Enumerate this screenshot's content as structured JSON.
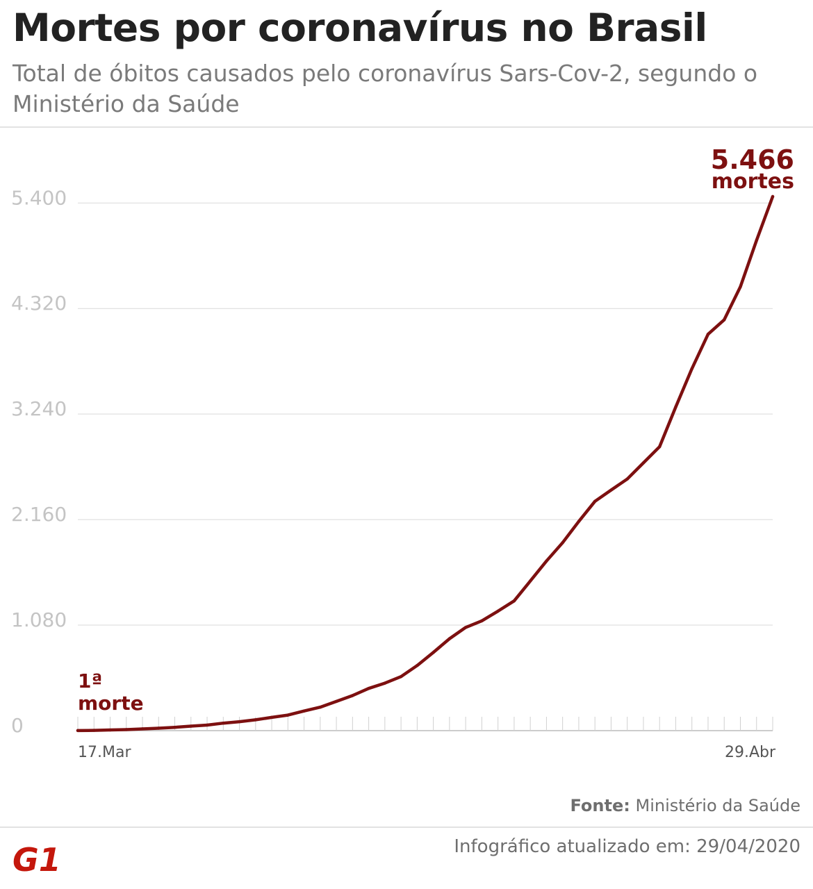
{
  "header": {
    "title": "Mortes por coronavírus no Brasil",
    "subtitle": "Total de óbitos causados pelo coronavírus Sars-Cov-2, segundo o Ministério da Saúde"
  },
  "footer": {
    "source_label": "Fonte:",
    "source_value": "Ministério da Saúde",
    "updated": "Infográfico atualizado em: 29/04/2020",
    "logo_text": "G1",
    "logo_color": "#c4170c"
  },
  "chart_data": {
    "type": "line",
    "x": [
      "2020-03-17",
      "2020-03-18",
      "2020-03-19",
      "2020-03-20",
      "2020-03-21",
      "2020-03-22",
      "2020-03-23",
      "2020-03-24",
      "2020-03-25",
      "2020-03-26",
      "2020-03-27",
      "2020-03-28",
      "2020-03-29",
      "2020-03-30",
      "2020-03-31",
      "2020-04-01",
      "2020-04-02",
      "2020-04-03",
      "2020-04-04",
      "2020-04-05",
      "2020-04-06",
      "2020-04-07",
      "2020-04-08",
      "2020-04-09",
      "2020-04-10",
      "2020-04-11",
      "2020-04-12",
      "2020-04-13",
      "2020-04-14",
      "2020-04-15",
      "2020-04-16",
      "2020-04-17",
      "2020-04-18",
      "2020-04-19",
      "2020-04-20",
      "2020-04-21",
      "2020-04-22",
      "2020-04-23",
      "2020-04-24",
      "2020-04-25",
      "2020-04-26",
      "2020-04-27",
      "2020-04-28",
      "2020-04-29"
    ],
    "values": [
      1,
      3,
      7,
      11,
      18,
      25,
      34,
      46,
      57,
      77,
      92,
      111,
      136,
      159,
      201,
      240,
      299,
      359,
      432,
      486,
      553,
      667,
      800,
      941,
      1056,
      1124,
      1223,
      1328,
      1532,
      1736,
      1924,
      2141,
      2347,
      2462,
      2575,
      2741,
      2906,
      3313,
      3704,
      4057,
      4205,
      4543,
      5017,
      5466
    ],
    "x_tick_labels": [
      "17.Mar",
      "29.Abr"
    ],
    "y_ticks": [
      "0",
      "1.080",
      "2.160",
      "3.240",
      "4.320",
      "5.400"
    ],
    "y_tick_values": [
      0,
      1080,
      2160,
      3240,
      4320,
      5400
    ],
    "ylim": [
      0,
      5466
    ],
    "grid": true,
    "line_color": "#7d1010",
    "annotations": {
      "first": {
        "line1": "1ª",
        "line2": "morte"
      },
      "last": {
        "value": "5.466",
        "unit": "mortes"
      }
    }
  }
}
